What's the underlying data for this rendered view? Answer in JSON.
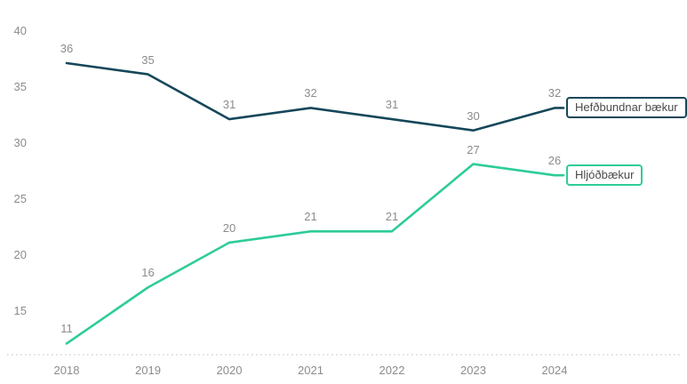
{
  "chart_data": {
    "type": "line",
    "categories": [
      "2018",
      "2019",
      "2020",
      "2021",
      "2022",
      "2023",
      "2024"
    ],
    "series": [
      {
        "name": "Hefðbundnar bækur",
        "color": "#16475a",
        "values": [
          36,
          35,
          31,
          32,
          31,
          30,
          32
        ]
      },
      {
        "name": "Hljóðbækur",
        "color": "#2ecc9a",
        "values": [
          11,
          16,
          20,
          21,
          21,
          27,
          26
        ]
      }
    ],
    "y_ticks": [
      40,
      35,
      30,
      25,
      20,
      15
    ],
    "ylim": [
      10,
      40
    ],
    "title": "",
    "xlabel": "",
    "ylabel": "",
    "grid": false,
    "data_labels": true,
    "legend_position": "labels-at-line-end-right"
  },
  "colors": {
    "background": "#ffffff",
    "axis_label": "#8c8c8c",
    "data_label": "#8c8c8c",
    "legend_text": "#4b4b4b",
    "axis_line_dotted": "#d5d5d5"
  }
}
